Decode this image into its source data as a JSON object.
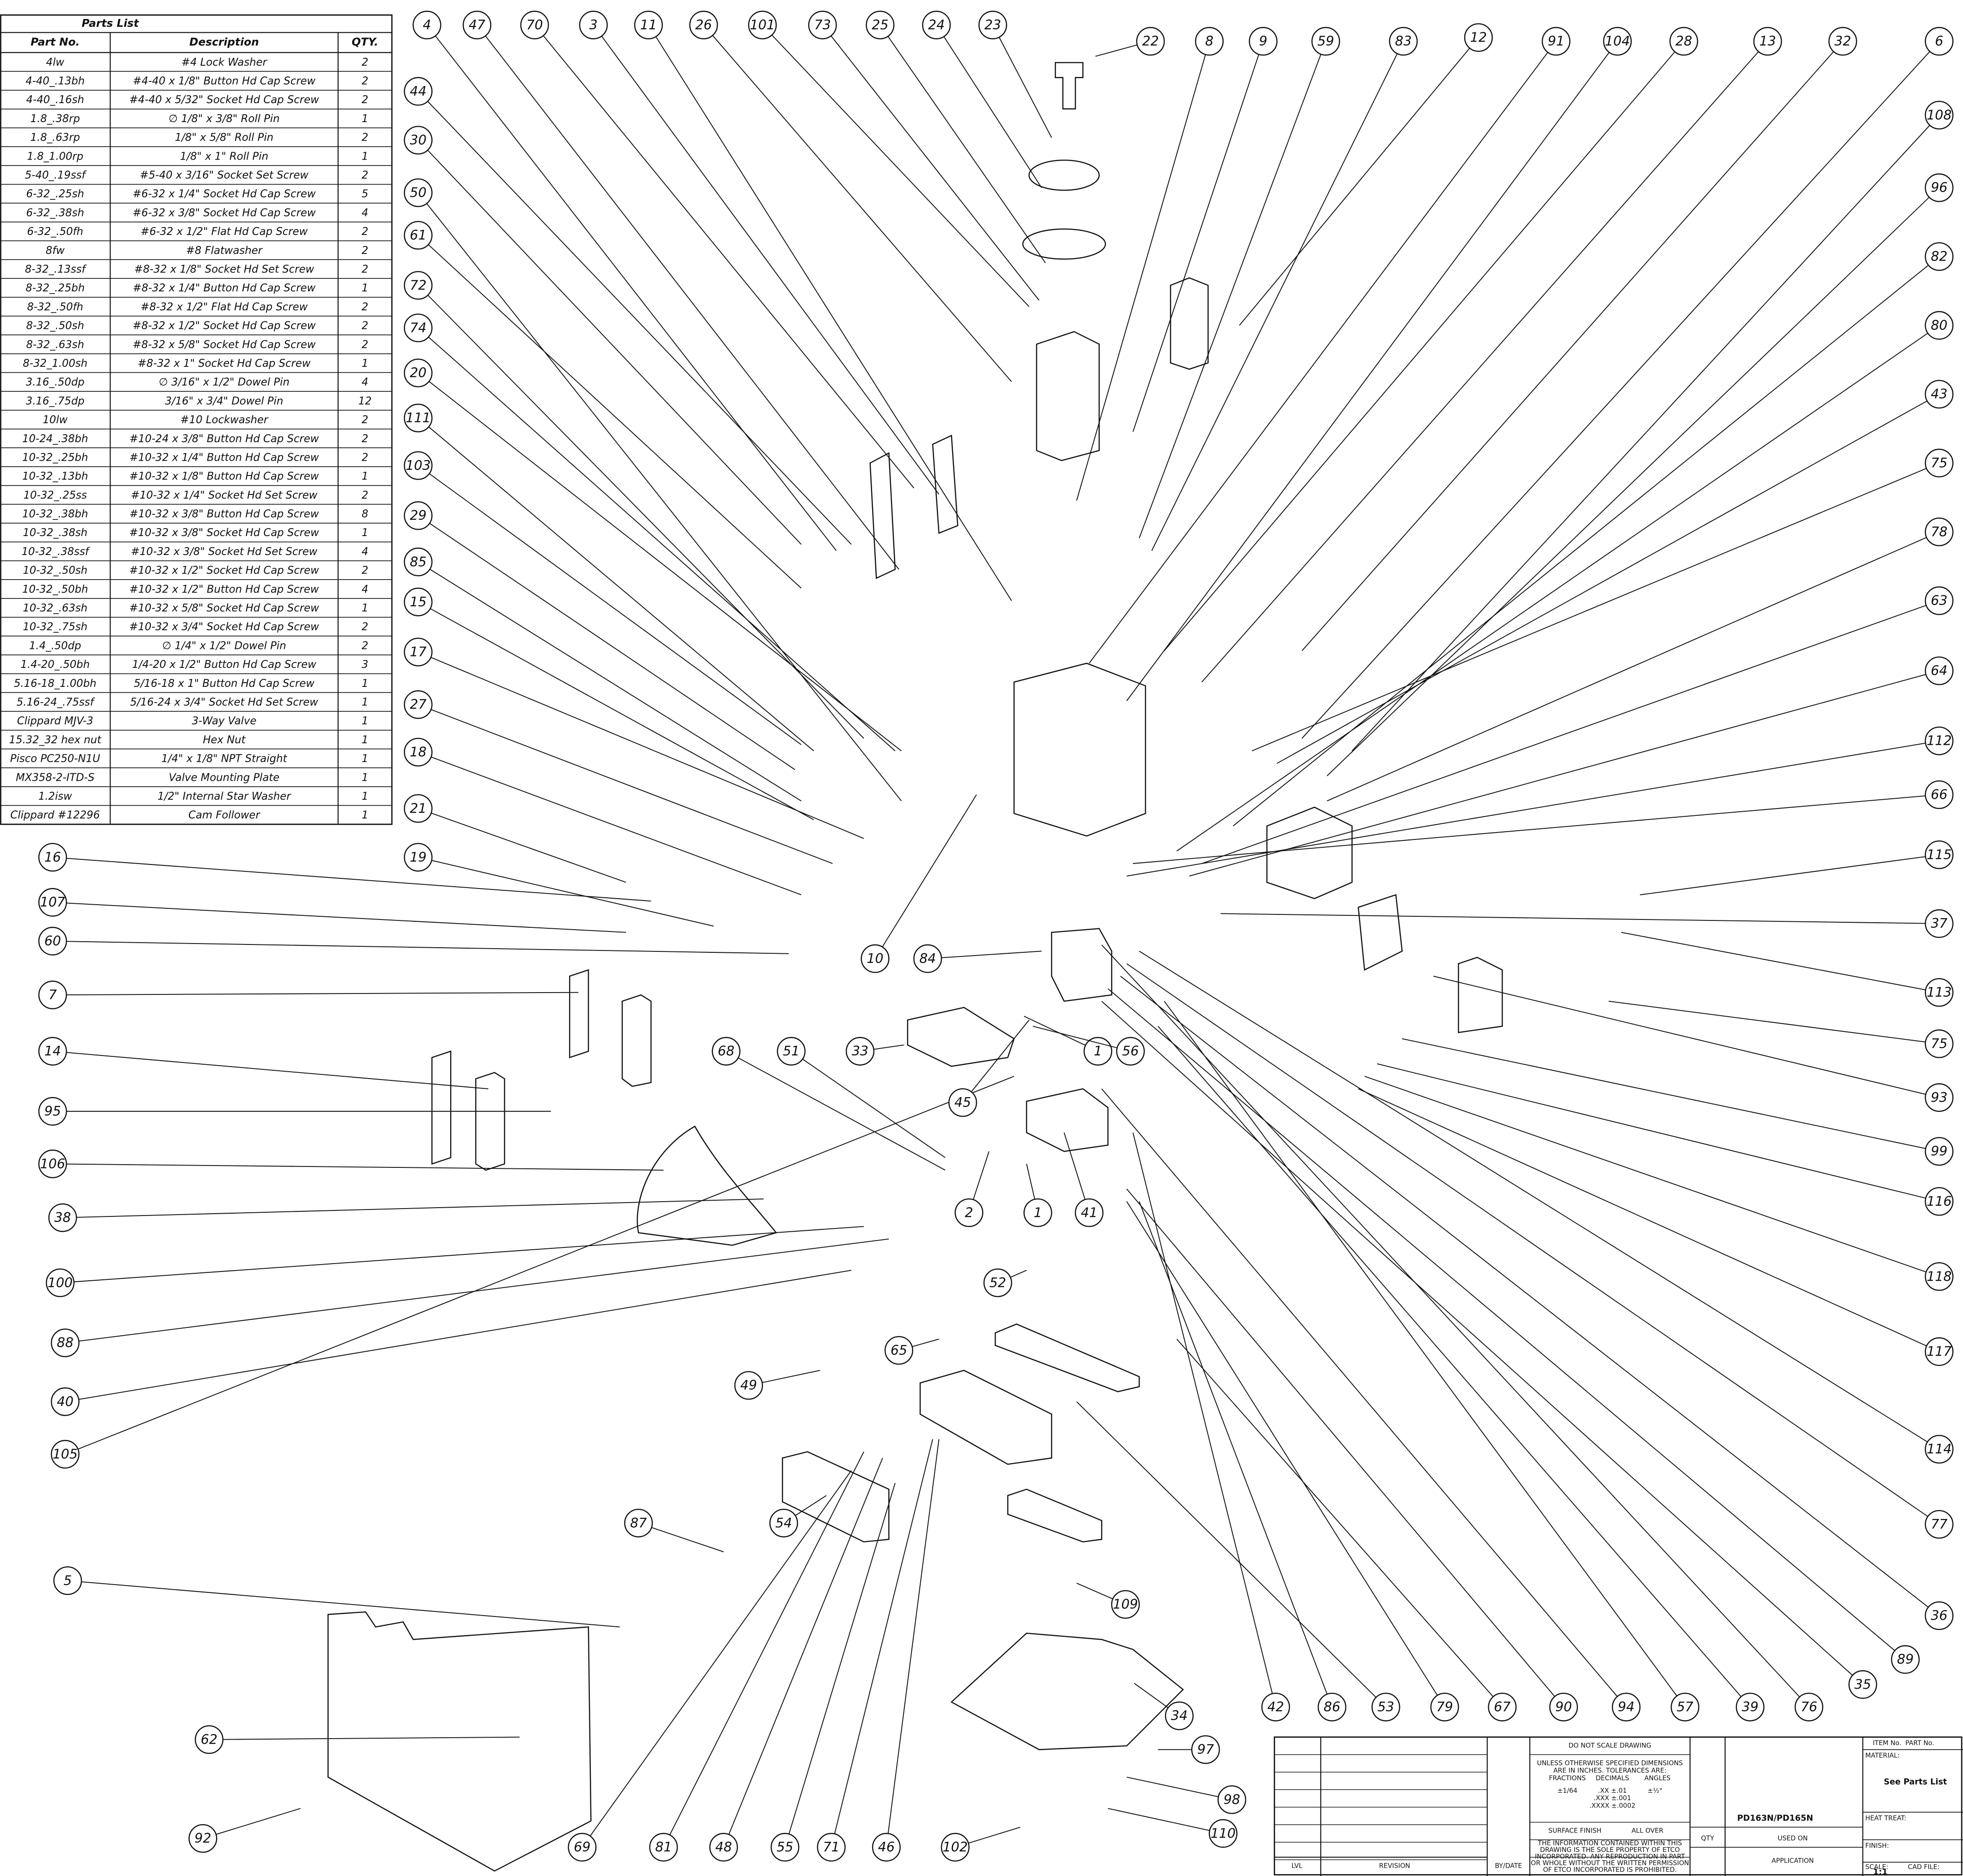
{
  "parts_list": {
    "title": "Parts List",
    "headers": [
      "Part No.",
      "Description",
      "QTY."
    ],
    "rows": [
      [
        "4lw",
        "#4 Lock Washer",
        "2"
      ],
      [
        "4-40_.13bh",
        "#4-40 x 1/8\" Button Hd Cap Screw",
        "2"
      ],
      [
        "4-40_.16sh",
        "#4-40 x 5/32\" Socket Hd Cap Screw",
        "2"
      ],
      [
        "1.8_.38rp",
        "∅ 1/8\" x 3/8\" Roll Pin",
        "1"
      ],
      [
        "1.8_.63rp",
        "1/8\" x 5/8\" Roll Pin",
        "2"
      ],
      [
        "1.8_1.00rp",
        "1/8\" x 1\" Roll Pin",
        "1"
      ],
      [
        "5-40_.19ssf",
        "#5-40 x 3/16\" Socket Set Screw",
        "2"
      ],
      [
        "6-32_.25sh",
        "#6-32 x 1/4\" Socket Hd Cap Screw",
        "5"
      ],
      [
        "6-32_.38sh",
        "#6-32 x 3/8\" Socket Hd Cap Screw",
        "4"
      ],
      [
        "6-32_.50fh",
        "#6-32 x 1/2\" Flat Hd Cap Screw",
        "2"
      ],
      [
        "8fw",
        "#8 Flatwasher",
        "2"
      ],
      [
        "8-32_.13ssf",
        "#8-32 x 1/8\" Socket Hd Set Screw",
        "2"
      ],
      [
        "8-32_.25bh",
        "#8-32 x 1/4\" Button Hd Cap Screw",
        "1"
      ],
      [
        "8-32_.50fh",
        "#8-32 x 1/2\" Flat Hd Cap Screw",
        "2"
      ],
      [
        "8-32_.50sh",
        "#8-32 x 1/2\" Socket Hd Cap Screw",
        "2"
      ],
      [
        "8-32_.63sh",
        "#8-32 x 5/8\" Socket Hd Cap Screw",
        "2"
      ],
      [
        "8-32_1.00sh",
        "#8-32 x 1\" Socket Hd Cap Screw",
        "1"
      ],
      [
        "3.16_.50dp",
        "∅ 3/16\" x 1/2\" Dowel Pin",
        "4"
      ],
      [
        "3.16_.75dp",
        "3/16\" x 3/4\" Dowel Pin",
        "12"
      ],
      [
        "10lw",
        "#10 Lockwasher",
        "2"
      ],
      [
        "10-24_.38bh",
        "#10-24 x 3/8\" Button Hd Cap Screw",
        "2"
      ],
      [
        "10-32_.25bh",
        "#10-32 x 1/4\" Button Hd Cap Screw",
        "2"
      ],
      [
        "10-32_.13bh",
        "#10-32 x 1/8\" Button Hd Cap Screw",
        "1"
      ],
      [
        "10-32_.25ss",
        "#10-32 x 1/4\" Socket Hd Set Screw",
        "2"
      ],
      [
        "10-32_.38bh",
        "#10-32 x 3/8\" Button Hd Cap Screw",
        "8"
      ],
      [
        "10-32_.38sh",
        "#10-32 x 3/8\" Socket Hd Cap Screw",
        "1"
      ],
      [
        "10-32_.38ssf",
        "#10-32 x 3/8\" Socket Hd Set Screw",
        "4"
      ],
      [
        "10-32_.50sh",
        "#10-32 x 1/2\" Socket Hd Cap Screw",
        "2"
      ],
      [
        "10-32_.50bh",
        "#10-32 x 1/2\" Button Hd Cap Screw",
        "4"
      ],
      [
        "10-32_.63sh",
        "#10-32 x 5/8\" Socket Hd Cap Screw",
        "1"
      ],
      [
        "10-32_.75sh",
        "#10-32 x 3/4\" Socket Hd Cap Screw",
        "2"
      ],
      [
        "1.4_.50dp",
        "∅ 1/4\" x 1/2\" Dowel Pin",
        "2"
      ],
      [
        "1.4-20_.50bh",
        "1/4-20 x 1/2\" Button Hd Cap Screw",
        "3"
      ],
      [
        "5.16-18_1.00bh",
        "5/16-18 x 1\" Button Hd Cap Screw",
        "1"
      ],
      [
        "5.16-24_.75ssf",
        "5/16-24 x 3/4\" Socket Hd Set Screw",
        "1"
      ],
      [
        "Clippard MJV-3",
        "3-Way Valve",
        "1"
      ],
      [
        "15.32_32 hex nut",
        "Hex Nut",
        "1"
      ],
      [
        "Pisco PC250-N1U",
        "1/4\" x 1/8\" NPT Straight",
        "1"
      ],
      [
        "MX358-2-ITD-S",
        "Valve Mounting Plate",
        "1"
      ],
      [
        "1.2isw",
        "1/2\" Internal Star Washer",
        "1"
      ],
      [
        "Clippard #12296",
        "Cam Follower",
        "1"
      ]
    ]
  },
  "balloons": [
    "4",
    "47",
    "70",
    "3",
    "11",
    "26",
    "101",
    "73",
    "25",
    "24",
    "23",
    "22",
    "8",
    "9",
    "59",
    "83",
    "12",
    "91",
    "104",
    "28",
    "13",
    "32",
    "6",
    "108",
    "96",
    "82",
    "80",
    "43",
    "75",
    "78",
    "63",
    "64",
    "112",
    "66",
    "115",
    "37",
    "113",
    "75",
    "93",
    "99",
    "116",
    "118",
    "117",
    "114",
    "77",
    "36",
    "89",
    "35",
    "42",
    "86",
    "53",
    "79",
    "67",
    "90",
    "94",
    "57",
    "39",
    "76",
    "44",
    "30",
    "50",
    "61",
    "72",
    "74",
    "20",
    "111",
    "103",
    "29",
    "85",
    "15",
    "17",
    "27",
    "18",
    "21",
    "19",
    "16",
    "107",
    "60",
    "7",
    "14",
    "95",
    "106",
    "38",
    "100",
    "88",
    "40",
    "105",
    "5",
    "62",
    "92",
    "10",
    "84",
    "68",
    "51",
    "33",
    "1",
    "56",
    "45",
    "2",
    "1",
    "41",
    "52",
    "65",
    "49",
    "87",
    "54",
    "109",
    "34",
    "97",
    "98",
    "110",
    "102",
    "46",
    "71",
    "55",
    "48",
    "81",
    "69"
  ],
  "title_block": {
    "do_not_scale": "DO NOT SCALE DRAWING",
    "tolerance_note": [
      "UNLESS OTHERWISE SPECIFIED DIMENSIONS",
      "ARE IN INCHES. TOLERANCES ARE:"
    ],
    "tolerance_headers": [
      "FRACTIONS",
      "DECIMALS",
      "ANGLES"
    ],
    "fraction_tol": "±1/64",
    "decimal_tols": [
      ".XX ±.01",
      ".XXX ±.001",
      ".XXXX ±.0002"
    ],
    "angle_tol": "±½°",
    "surface_finish": "SURFACE FINISH",
    "all_over": "ALL OVER",
    "property_note": [
      "THE INFORMATION CONTAINED WITHIN THIS",
      "DRAWING IS THE SOLE PROPERTY OF ETCO",
      "INCORPORATED. ANY REPRODUCTION IN PART",
      "OR WHOLE WITHOUT THE WRITTEN PERMISSION",
      "OF ETCO INCORPORATED IS PROHIBITED."
    ],
    "part_name": "PD163N/PD165N",
    "qty": "QTY",
    "used_on": "USED ON",
    "application": "APPLICATION",
    "lvl": "LVL",
    "revision": "REVISION",
    "by_date": "BY/DATE",
    "item_no": "ITEM No.",
    "part_no": "PART No.",
    "material": "MATERIAL:",
    "material_value": "See Parts List",
    "heat_treat": "HEAT TREAT:",
    "finish": "FINISH:",
    "scale": "SCALE:",
    "scale_value": "1:1",
    "cad_file": "CAD FILE:"
  }
}
